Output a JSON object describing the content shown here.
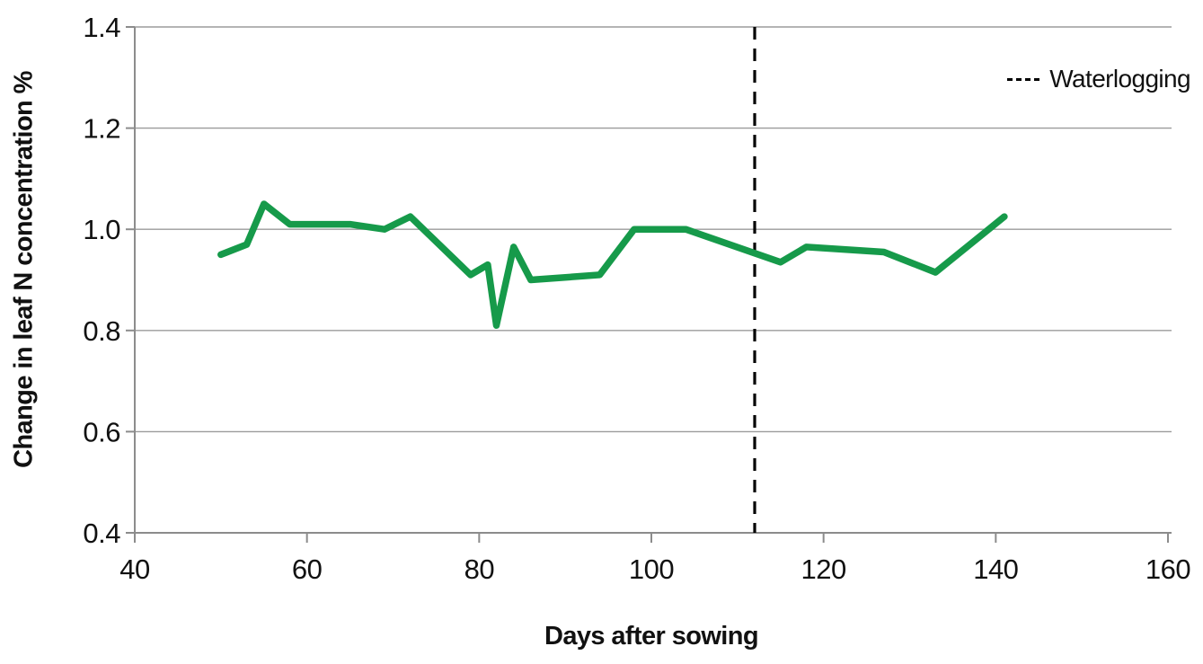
{
  "chart_data": {
    "type": "line",
    "title": "",
    "xlabel": "Days after sowing",
    "ylabel": "Change in leaf N concentration %",
    "xlim": [
      40,
      160
    ],
    "ylim": [
      0.4,
      1.4
    ],
    "xticks": [
      40,
      60,
      80,
      100,
      120,
      140,
      160
    ],
    "yticks": [
      0.4,
      0.6,
      0.8,
      1.0,
      1.2,
      1.4
    ],
    "ytick_labels": [
      "0.4",
      "0.6",
      "0.8",
      "1.0",
      "1.2",
      "1.4"
    ],
    "grid": "horizontal-only",
    "legend": {
      "position": "top-right",
      "entries": [
        {
          "label": "Waterlogging",
          "style": "dashed",
          "color": "#000000"
        }
      ]
    },
    "series": [
      {
        "color": "#169a4a",
        "x": [
          50,
          53,
          55,
          58,
          65,
          69,
          72,
          79,
          81,
          82,
          84,
          86,
          94,
          98,
          104,
          115,
          118,
          127,
          133,
          141
        ],
        "y": [
          0.95,
          0.97,
          1.05,
          1.01,
          1.01,
          1.0,
          1.025,
          0.91,
          0.93,
          0.81,
          0.965,
          0.9,
          0.91,
          1.0,
          1.0,
          0.935,
          0.965,
          0.955,
          0.915,
          1.025
        ]
      }
    ],
    "annotations": [
      {
        "type": "vline",
        "x": 112,
        "label": "Waterlogging",
        "style": "dashed",
        "color": "#000000"
      }
    ],
    "colors": {
      "line": "#169a4a",
      "grid": "#9b9b9b",
      "axis": "#8c8c8c",
      "text": "#111111",
      "background": "#ffffff"
    }
  }
}
